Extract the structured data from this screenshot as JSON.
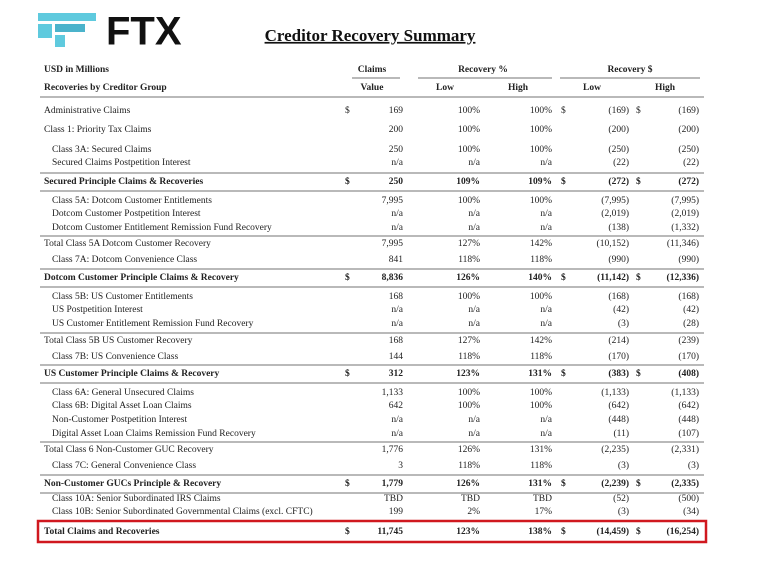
{
  "header": {
    "logo": "FTX",
    "title": "Creditor Recovery Summary"
  },
  "table": {
    "unit_label": "USD in Millions",
    "group_label": "Recoveries by Creditor Group",
    "column_groups": [
      "Claims",
      "Recovery %",
      "Recovery $"
    ],
    "columns": [
      "Value",
      "Low",
      "High",
      "Low",
      "High"
    ],
    "rows": [
      {
        "label": "Administrative Claims",
        "currency": "$",
        "values": [
          "169",
          "100%",
          "100%",
          "(169)",
          "(169)"
        ]
      },
      {
        "label": "Class 1: Priority Tax Claims",
        "values": [
          "200",
          "100%",
          "100%",
          "(200)",
          "(200)"
        ]
      },
      {
        "label": "Class 3A: Secured Claims",
        "values": [
          "250",
          "100%",
          "100%",
          "(250)",
          "(250)"
        ]
      },
      {
        "label": "Secured Claims Postpetition Interest",
        "values": [
          "n/a",
          "n/a",
          "n/a",
          "(22)",
          "(22)"
        ]
      },
      {
        "label": "Secured Principle Claims & Recoveries",
        "currency": "$",
        "values": [
          "250",
          "109%",
          "109%",
          "(272)",
          "(272)"
        ]
      },
      {
        "label": "Class 5A: Dotcom Customer Entitlements",
        "values": [
          "7,995",
          "100%",
          "100%",
          "(7,995)",
          "(7,995)"
        ]
      },
      {
        "label": "Dotcom Customer Postpetition Interest",
        "values": [
          "n/a",
          "n/a",
          "n/a",
          "(2,019)",
          "(2,019)"
        ]
      },
      {
        "label": "Dotcom Customer Entitlement Remission Fund Recovery",
        "values": [
          "n/a",
          "n/a",
          "n/a",
          "(138)",
          "(1,332)"
        ]
      },
      {
        "label": "Total Class 5A Dotcom Customer Recovery",
        "values": [
          "7,995",
          "127%",
          "142%",
          "(10,152)",
          "(11,346)"
        ]
      },
      {
        "label": "Class 7A: Dotcom Convenience Class",
        "values": [
          "841",
          "118%",
          "118%",
          "(990)",
          "(990)"
        ]
      },
      {
        "label": "Dotcom Customer Principle Claims & Recovery",
        "currency": "$",
        "values": [
          "8,836",
          "126%",
          "140%",
          "(11,142)",
          "(12,336)"
        ]
      },
      {
        "label": "Class 5B: US Customer Entitlements",
        "values": [
          "168",
          "100%",
          "100%",
          "(168)",
          "(168)"
        ]
      },
      {
        "label": "US Postpetition Interest",
        "values": [
          "n/a",
          "n/a",
          "n/a",
          "(42)",
          "(42)"
        ]
      },
      {
        "label": "US Customer Entitlement Remission Fund Recovery",
        "values": [
          "n/a",
          "n/a",
          "n/a",
          "(3)",
          "(28)"
        ]
      },
      {
        "label": "Total Class 5B US Customer Recovery",
        "values": [
          "168",
          "127%",
          "142%",
          "(214)",
          "(239)"
        ]
      },
      {
        "label": "Class 7B: US Convenience Class",
        "values": [
          "144",
          "118%",
          "118%",
          "(170)",
          "(170)"
        ]
      },
      {
        "label": "US Customer Principle Claims & Recovery",
        "currency": "$",
        "values": [
          "312",
          "123%",
          "131%",
          "(383)",
          "(408)"
        ]
      },
      {
        "label": "Class 6A: General Unsecured Claims",
        "values": [
          "1,133",
          "100%",
          "100%",
          "(1,133)",
          "(1,133)"
        ]
      },
      {
        "label": "Class 6B: Digital Asset Loan Claims",
        "values": [
          "642",
          "100%",
          "100%",
          "(642)",
          "(642)"
        ]
      },
      {
        "label": "Non-Customer Postpetition Interest",
        "values": [
          "n/a",
          "n/a",
          "n/a",
          "(448)",
          "(448)"
        ]
      },
      {
        "label": "Digital Asset Loan Claims Remission Fund Recovery",
        "values": [
          "n/a",
          "n/a",
          "n/a",
          "(11)",
          "(107)"
        ]
      },
      {
        "label": "Total Class 6 Non-Customer GUC Recovery",
        "values": [
          "1,776",
          "126%",
          "131%",
          "(2,235)",
          "(2,331)"
        ]
      },
      {
        "label": "Class 7C: General Convenience Class",
        "values": [
          "3",
          "118%",
          "118%",
          "(3)",
          "(3)"
        ]
      },
      {
        "label": "Non-Customer GUCs Principle & Recovery",
        "currency": "$",
        "values": [
          "1,779",
          "126%",
          "131%",
          "(2,239)",
          "(2,335)"
        ]
      },
      {
        "label": "Class 10A: Senior Subordinated IRS Claims",
        "values": [
          "TBD",
          "TBD",
          "TBD",
          "(52)",
          "(500)"
        ]
      },
      {
        "label": "Class 10B: Senior Subordinated Governmental Claims (excl. CFTC)",
        "values": [
          "199",
          "2%",
          "17%",
          "(3)",
          "(34)"
        ]
      },
      {
        "label": "Total Claims and Recoveries",
        "currency": "$",
        "values": [
          "11,745",
          "123%",
          "138%",
          "(14,459)",
          "(16,254)"
        ]
      }
    ]
  }
}
